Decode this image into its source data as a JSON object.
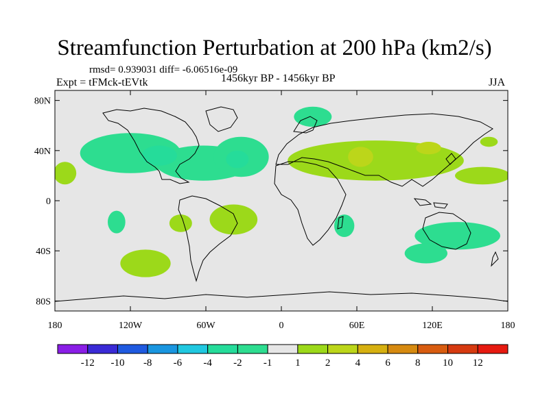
{
  "title": "Streamfunction Perturbation at 200 hPa (km2/s)",
  "stats": "rmsd= 0.939031 diff= -6.06516e-09",
  "experiment": "Expt = tFMck-tEVtk",
  "period": "1456kyr BP - 1456kyr BP",
  "season": "JJA",
  "lat_labels": [
    "80N",
    "40N",
    "0",
    "40S",
    "80S"
  ],
  "lon_labels": [
    "180",
    "120W",
    "60W",
    "0",
    "60E",
    "120E",
    "180"
  ],
  "colorbar": {
    "labels": [
      "-12",
      "-10",
      "-8",
      "-6",
      "-4",
      "-2",
      "-1",
      "1",
      "2",
      "4",
      "6",
      "8",
      "10",
      "12"
    ],
    "colors": [
      "#8a1ee6",
      "#3a2ad6",
      "#1f5ae0",
      "#1a96e0",
      "#20c8e0",
      "#25dc9a",
      "#2ddd90",
      "#e6e6e6",
      "#9cd91a",
      "#bcd61a",
      "#d6b010",
      "#d68a10",
      "#d85c10",
      "#d63a10",
      "#e61a10"
    ]
  },
  "fields": [
    {
      "level": "-1",
      "color": "#2ddd90",
      "lon": -120,
      "lat": 38,
      "rx": 40,
      "ry": 16
    },
    {
      "level": "-1",
      "color": "#2ddd90",
      "lon": -62,
      "lat": 30,
      "rx": 38,
      "ry": 14
    },
    {
      "level": "-1",
      "color": "#2ddd90",
      "lon": -32,
      "lat": 35,
      "rx": 22,
      "ry": 16
    },
    {
      "level": "-2",
      "color": "#25dc9a",
      "lon": -97,
      "lat": 36,
      "rx": 14,
      "ry": 8
    },
    {
      "level": "-2",
      "color": "#25dc9a",
      "lon": -35,
      "lat": 33,
      "rx": 9,
      "ry": 7
    },
    {
      "level": "-1",
      "color": "#2ddd90",
      "lon": 25,
      "lat": 67,
      "rx": 15,
      "ry": 8
    },
    {
      "level": "-1",
      "color": "#2ddd90",
      "lon": -131,
      "lat": -17,
      "rx": 7,
      "ry": 9
    },
    {
      "level": "-1",
      "color": "#2ddd90",
      "lon": 50,
      "lat": -20,
      "rx": 8,
      "ry": 9
    },
    {
      "level": "-1",
      "color": "#2ddd90",
      "lon": 140,
      "lat": -28,
      "rx": 34,
      "ry": 11
    },
    {
      "level": "-1",
      "color": "#2ddd90",
      "lon": 115,
      "lat": -42,
      "rx": 17,
      "ry": 8
    },
    {
      "level": "1",
      "color": "#9cd91a",
      "lon": -172,
      "lat": 22,
      "rx": 9,
      "ry": 9
    },
    {
      "level": "1",
      "color": "#9cd91a",
      "lon": -80,
      "lat": -18,
      "rx": 9,
      "ry": 7
    },
    {
      "level": "1",
      "color": "#9cd91a",
      "lon": -38,
      "lat": -15,
      "rx": 19,
      "ry": 12
    },
    {
      "level": "1",
      "color": "#9cd91a",
      "lon": -108,
      "lat": -50,
      "rx": 20,
      "ry": 11
    },
    {
      "level": "1",
      "color": "#9cd91a",
      "lon": 75,
      "lat": 32,
      "rx": 70,
      "ry": 16
    },
    {
      "level": "1",
      "color": "#9cd91a",
      "lon": 160,
      "lat": 20,
      "rx": 22,
      "ry": 7
    },
    {
      "level": "1",
      "color": "#9cd91a",
      "lon": 165,
      "lat": 47,
      "rx": 7,
      "ry": 4
    },
    {
      "level": "2",
      "color": "#bcd61a",
      "lon": 63,
      "lat": 35,
      "rx": 10,
      "ry": 8
    },
    {
      "level": "2",
      "color": "#bcd61a",
      "lon": 117,
      "lat": 42,
      "rx": 10,
      "ry": 5
    }
  ]
}
